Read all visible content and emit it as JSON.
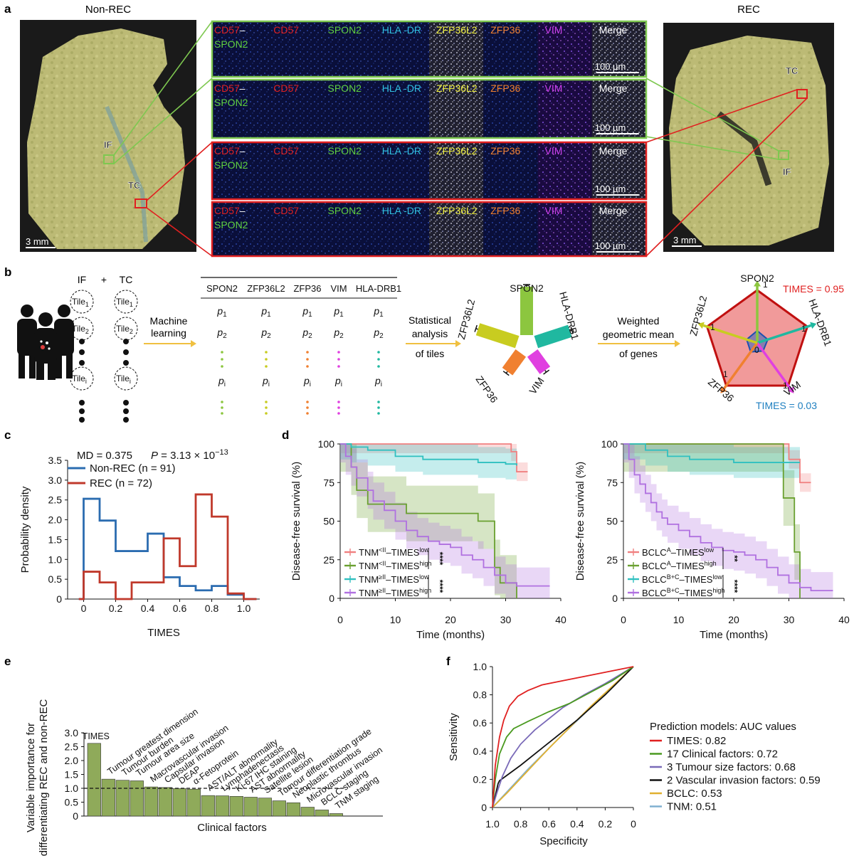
{
  "panel_a": {
    "letter": "a",
    "left_title": "Non-REC",
    "right_title": "REC",
    "scale_left": "3 mm",
    "scale_right": "3 mm",
    "label_if_left": "IF",
    "label_tc_left": "TC",
    "label_tc_right": "TC",
    "label_if_right": "IF",
    "channels": [
      "CD57",
      "SPON2",
      "HLA -DR",
      "ZFP36L2",
      "ZFP36",
      "VIM",
      "Merge"
    ],
    "channel_first_line1": "CD57",
    "channel_first_dash": "–",
    "channel_first_line2": "SPON2",
    "microscale": "100 µm",
    "colors": {
      "green_frame": "#7ec850",
      "red_frame": "#e02020"
    }
  },
  "panel_b": {
    "letter": "b",
    "if_label": "IF",
    "plus": "+",
    "tc_label": "TC",
    "tile": "Tile",
    "subs": [
      "1",
      "2",
      "i"
    ],
    "ml_label1": "Machine",
    "ml_label2": "learning",
    "genes": [
      "SPON2",
      "ZFP36L2",
      "ZFP36",
      "VIM",
      "HLA-DRB1"
    ],
    "p": "p",
    "p_subs": [
      "1",
      "2",
      "i"
    ],
    "stat1": "Statistical",
    "stat2": "analysis",
    "stat3": "of tiles",
    "wgm1": "Weighted",
    "wgm2": "geometric mean",
    "wgm3": "of genes",
    "bar_labels": [
      "SPON2",
      "HLA-DRB1",
      "VIM",
      "ZFP36",
      "ZFP36L2"
    ],
    "radar_labels": [
      "SPON2",
      "HLA-DRB1",
      "VIM",
      "ZFP36",
      "ZFP36L2"
    ],
    "radar_one": "1",
    "radar_zero": "0",
    "times_high": "TIMES = 0.95",
    "times_low": "TIMES = 0.03",
    "colors": {
      "spon2": "#8cc63f",
      "zfp36l2": "#c8cc20",
      "zfp36": "#f08030",
      "vim": "#e040e0",
      "hla": "#20b8a0"
    }
  },
  "chart_data": [
    {
      "panel": "c",
      "type": "line",
      "step": true,
      "annot_md": "MD = 0.375",
      "annot_p": "P = 3.13 × 10",
      "annot_p_exp": "−13",
      "xlabel": "TIMES",
      "ylabel": "Probability density",
      "xlim": [
        -0.1,
        1.1
      ],
      "ylim": [
        0,
        3.5
      ],
      "x_ticks": [
        "0",
        "0.2",
        "0.4",
        "0.6",
        "0.8",
        "1.0"
      ],
      "y_ticks": [
        "0",
        "0.5",
        "1.0",
        "1.5",
        "2.0",
        "2.5",
        "3.0",
        "3.5"
      ],
      "series": [
        {
          "name": "Non-REC (n = 91)",
          "color": "#2b6cb0",
          "edges": [
            0,
            0.1,
            0.2,
            0.3,
            0.4,
            0.5,
            0.6,
            0.7,
            0.8,
            0.9,
            1.0
          ],
          "values": [
            2.53,
            1.98,
            1.21,
            1.21,
            1.65,
            0.55,
            0.33,
            0.22,
            0.33,
            0.11
          ]
        },
        {
          "name": "REC (n = 72)",
          "color": "#c0392b",
          "edges": [
            0,
            0.1,
            0.2,
            0.3,
            0.4,
            0.5,
            0.6,
            0.7,
            0.8,
            0.9,
            1.0
          ],
          "values": [
            0.69,
            0.42,
            0.0,
            0.42,
            0.42,
            1.53,
            0.83,
            2.64,
            2.08,
            0.14
          ]
        }
      ],
      "legend": [
        "Non-REC (n = 91)",
        "REC (n = 72)"
      ]
    },
    {
      "panel": "d-left",
      "type": "line",
      "step": true,
      "xlabel": "Time (months)",
      "ylabel": "Disease-free survival (%)",
      "xlim": [
        0,
        40
      ],
      "ylim": [
        0,
        100
      ],
      "x_ticks": [
        "0",
        "10",
        "20",
        "30",
        "40"
      ],
      "y_ticks": [
        "0",
        "25",
        "50",
        "75",
        "100"
      ],
      "series": [
        {
          "name": "TNM<II–TIMESlow",
          "color": "#f08080",
          "x": [
            0,
            30,
            31,
            32,
            33,
            34
          ],
          "y": [
            100,
            100,
            95,
            82,
            82,
            82
          ]
        },
        {
          "name": "TNM<II–TIMEShigh",
          "color": "#6aa030",
          "x": [
            0,
            2,
            3,
            5,
            8,
            12,
            20,
            25,
            28,
            29,
            32
          ],
          "y": [
            100,
            85,
            70,
            61,
            61,
            55,
            55,
            50,
            20,
            10,
            0
          ]
        },
        {
          "name": "TNM≥II–TIMESlow",
          "color": "#30c0c0",
          "x": [
            0,
            2,
            5,
            10,
            15,
            20,
            25,
            30,
            32
          ],
          "y": [
            100,
            98,
            96,
            92,
            90,
            90,
            88,
            87,
            86
          ]
        },
        {
          "name": "TNM≥II–TIMEShigh",
          "color": "#b070e0",
          "x": [
            0,
            1,
            2,
            3,
            5,
            6,
            8,
            10,
            12,
            14,
            16,
            18,
            20,
            22,
            24,
            26,
            28,
            30,
            32,
            35,
            38
          ],
          "y": [
            100,
            92,
            85,
            78,
            70,
            63,
            57,
            50,
            44,
            40,
            37,
            35,
            33,
            28,
            25,
            20,
            15,
            10,
            8,
            8,
            8
          ]
        }
      ],
      "legend": [
        {
          "base": "TNM",
          "sup": "<II",
          "mid": "–TIMES",
          "sup2": "low",
          "color": "#f08080"
        },
        {
          "base": "TNM",
          "sup": "<II",
          "mid": "–TIMES",
          "sup2": "high",
          "color": "#6aa030"
        },
        {
          "base": "TNM",
          "sup": "≥II",
          "mid": "–TIMES",
          "sup2": "low",
          "color": "#30c0c0"
        },
        {
          "base": "TNM",
          "sup": "≥II",
          "mid": "–TIMES",
          "sup2": "high",
          "color": "#b070e0"
        }
      ],
      "sig": [
        "****",
        "****"
      ]
    },
    {
      "panel": "d-right",
      "type": "line",
      "step": true,
      "xlabel": "Time (months)",
      "ylabel": "Disease-free survival (%)",
      "xlim": [
        0,
        40
      ],
      "ylim": [
        0,
        100
      ],
      "x_ticks": [
        "0",
        "10",
        "20",
        "30",
        "40"
      ],
      "y_ticks": [
        "0",
        "25",
        "50",
        "75",
        "100"
      ],
      "series": [
        {
          "name": "BCLCA–TIMESlow",
          "color": "#f08080",
          "x": [
            0,
            28,
            30,
            32,
            34
          ],
          "y": [
            100,
            100,
            90,
            75,
            75
          ]
        },
        {
          "name": "BCLCA–TIMEShigh",
          "color": "#6aa030",
          "x": [
            0,
            20,
            28,
            29,
            31,
            32
          ],
          "y": [
            100,
            100,
            100,
            65,
            30,
            0
          ]
        },
        {
          "name": "BCLCB+C–TIMESlow",
          "color": "#30c0c0",
          "x": [
            0,
            4,
            8,
            12,
            20,
            28,
            32
          ],
          "y": [
            100,
            96,
            92,
            90,
            88,
            88,
            88
          ]
        },
        {
          "name": "BCLCB+C–TIMEShigh",
          "color": "#b070e0",
          "x": [
            0,
            1,
            2,
            3,
            4,
            5,
            6,
            7,
            8,
            10,
            12,
            14,
            16,
            18,
            20,
            22,
            24,
            26,
            28,
            30,
            32,
            34,
            38
          ],
          "y": [
            100,
            90,
            80,
            74,
            68,
            62,
            56,
            52,
            48,
            44,
            40,
            36,
            33,
            31,
            30,
            28,
            25,
            20,
            15,
            10,
            7,
            5,
            5
          ]
        }
      ],
      "legend": [
        {
          "base": "BCLC",
          "sup": "A",
          "mid": "–TIMES",
          "sup2": "low",
          "color": "#f08080"
        },
        {
          "base": "BCLC",
          "sup": "A",
          "mid": "–TIMES",
          "sup2": "high",
          "color": "#6aa030"
        },
        {
          "base": "BCLC",
          "sup": "B+C",
          "mid": "–TIMES",
          "sup2": "low",
          "color": "#30c0c0"
        },
        {
          "base": "BCLC",
          "sup": "B+C",
          "mid": "–TIMES",
          "sup2": "high",
          "color": "#b070e0"
        }
      ],
      "sig": [
        "**",
        "****"
      ]
    },
    {
      "panel": "e",
      "type": "bar",
      "xlabel": "Clinical factors",
      "ylabel_line1": "Variable importance for",
      "ylabel_line2": "differentiating REC and non-REC",
      "ylim": [
        0,
        3.0
      ],
      "y_ticks": [
        "0",
        "0.5",
        "1.0",
        "1.5",
        "2.0",
        "2.5",
        "3.0"
      ],
      "threshold": 1.0,
      "color": "#8faa5a",
      "categories": [
        "TIMES",
        "Tumour greatest dimension",
        "Tumour burden",
        "Tumour area size",
        "Macrovascular invasion",
        "Capsular invasion",
        "DEAP",
        "α-Fetoprotein",
        "AST/ALT abnormality",
        "Lymphadenectasis",
        "Ki-67 IHC staining",
        "AST abnormality",
        "Satellite lesion",
        "Tumour differentiation grade",
        "Neoplastic thrombus",
        "Microvascular invasion",
        "BCLC staging",
        "TNM staging"
      ],
      "values": [
        2.62,
        1.33,
        1.29,
        1.27,
        1.05,
        1.03,
        0.99,
        0.97,
        0.74,
        0.73,
        0.71,
        0.68,
        0.65,
        0.55,
        0.48,
        0.32,
        0.22,
        0.09
      ]
    },
    {
      "panel": "f",
      "type": "line",
      "xlabel": "Specificity",
      "ylabel": "Sensitivity",
      "xlim": [
        1.0,
        0
      ],
      "ylim": [
        0,
        1.0
      ],
      "x_ticks": [
        "1.0",
        "0.8",
        "0.6",
        "0.4",
        "0.2",
        "0"
      ],
      "y_ticks": [
        "0",
        "0.2",
        "0.4",
        "0.6",
        "0.8",
        "1.0"
      ],
      "legend_title": "Prediction models: AUC values",
      "series": [
        {
          "name": "TIMES: 0.82",
          "color": "#e02020",
          "x": [
            1.0,
            0.98,
            0.95,
            0.92,
            0.88,
            0.82,
            0.75,
            0.65,
            0.5,
            0.3,
            0.0
          ],
          "y": [
            0.0,
            0.3,
            0.5,
            0.62,
            0.72,
            0.79,
            0.83,
            0.87,
            0.9,
            0.94,
            1.0
          ]
        },
        {
          "name": "17 Clinical factors: 0.72",
          "color": "#4a9a20",
          "x": [
            1.0,
            0.98,
            0.95,
            0.9,
            0.85,
            0.75,
            0.6,
            0.45,
            0.3,
            0.15,
            0.0
          ],
          "y": [
            0.0,
            0.2,
            0.38,
            0.5,
            0.56,
            0.61,
            0.68,
            0.74,
            0.82,
            0.9,
            1.0
          ]
        },
        {
          "name": "3 Tumour size factors: 0.68",
          "color": "#7a6ab8",
          "x": [
            1.0,
            0.97,
            0.93,
            0.87,
            0.8,
            0.7,
            0.6,
            0.5,
            0.35,
            0.2,
            0.0
          ],
          "y": [
            0.0,
            0.1,
            0.22,
            0.35,
            0.45,
            0.55,
            0.63,
            0.71,
            0.8,
            0.88,
            1.0
          ]
        },
        {
          "name": "2 Vascular invasion factors: 0.59",
          "color": "#111111",
          "x": [
            1.0,
            0.96,
            0.95,
            0.8,
            0.6,
            0.4,
            0.2,
            0.0
          ],
          "y": [
            0.0,
            0.17,
            0.19,
            0.3,
            0.46,
            0.62,
            0.8,
            1.0
          ]
        },
        {
          "name": "BCLC: 0.53",
          "color": "#e0b030",
          "x": [
            1.0,
            0.92,
            0.9,
            0.6,
            0.3,
            0.0
          ],
          "y": [
            0.0,
            0.08,
            0.1,
            0.42,
            0.72,
            1.0
          ]
        },
        {
          "name": "TNM: 0.51",
          "color": "#80b0d0",
          "x": [
            1.0,
            0.75,
            0.5,
            0.25,
            0.0
          ],
          "y": [
            0.0,
            0.27,
            0.52,
            0.76,
            1.0
          ]
        }
      ]
    }
  ],
  "panel_letters": {
    "c": "c",
    "d": "d",
    "e": "e",
    "f": "f"
  }
}
